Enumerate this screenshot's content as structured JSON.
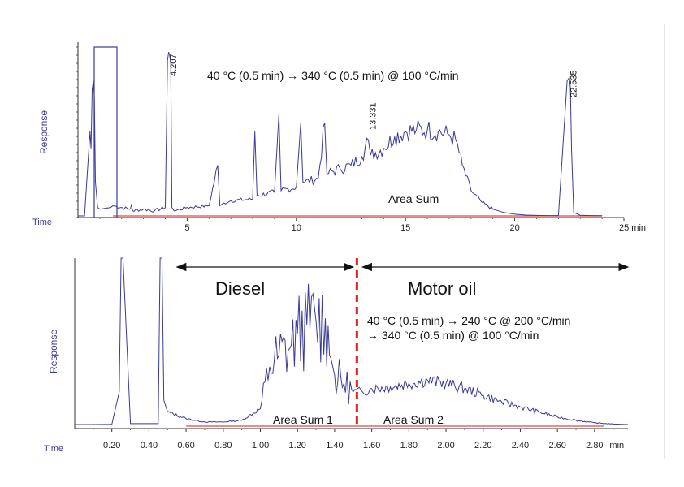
{
  "chart_data": [
    {
      "type": "line",
      "ylabel": "Response",
      "xlabel_time": "Time",
      "xunit": "min",
      "xlim": [
        0,
        25
      ],
      "x_ticks": [
        5,
        10,
        15,
        20,
        25
      ],
      "x_tick_labels": [
        "5",
        "10",
        "15",
        "20",
        "25 min"
      ],
      "condition": "40 °C (0.5 min) → 340 °C (0.5 min) @ 100 °C/min",
      "peak_labels": [
        {
          "x": 4.207,
          "text": "4.207"
        },
        {
          "x": 13.331,
          "text": "13.331"
        },
        {
          "x": 22.535,
          "text": "22.535"
        }
      ],
      "area_sum_label": "Area Sum",
      "series": [
        {
          "name": "chromatogram",
          "color": "#3a3a9a",
          "x": [
            0,
            0.3,
            0.55,
            0.6,
            0.65,
            0.7,
            0.75,
            0.8,
            0.9,
            1.0,
            1.5,
            1.6,
            2.4,
            2.45,
            2.5,
            3,
            3.5,
            4.0,
            4.1,
            4.15,
            4.2,
            4.25,
            4.3,
            4.4,
            5,
            6,
            6.4,
            6.5,
            6.6,
            7,
            8,
            8.1,
            8.2,
            9,
            9.2,
            9.3,
            10,
            10.2,
            10.3,
            11,
            11.3,
            11.4,
            12,
            12.5,
            13,
            13.3,
            13.4,
            14,
            14.5,
            15,
            15.5,
            16,
            16.5,
            17,
            17.3,
            17.6,
            18,
            18.5,
            19,
            19.5,
            20,
            20.5,
            21,
            21.5,
            22,
            22.4,
            22.5,
            22.55,
            22.6,
            22.7,
            23,
            23.5,
            24
          ],
          "y": [
            0,
            0,
            0.5,
            0.4,
            0.75,
            0.8,
            0.7,
            0.2,
            0.05,
            0.04,
            0.05,
            0.06,
            0.04,
            0.07,
            0.03,
            0.04,
            0.03,
            0.05,
            0.92,
            0.97,
            0.95,
            0.9,
            0.05,
            0.03,
            0.05,
            0.06,
            0.3,
            0.06,
            0.07,
            0.09,
            0.1,
            0.5,
            0.12,
            0.14,
            0.6,
            0.15,
            0.17,
            0.55,
            0.2,
            0.22,
            0.55,
            0.25,
            0.28,
            0.3,
            0.35,
            0.45,
            0.36,
            0.4,
            0.47,
            0.5,
            0.51,
            0.51,
            0.5,
            0.48,
            0.45,
            0.3,
            0.15,
            0.08,
            0.04,
            0.02,
            0.01,
            0.005,
            0.003,
            0.002,
            0.002,
            0.8,
            0.82,
            0.76,
            0.4,
            0.02,
            0.004,
            0.002,
            0.001
          ]
        }
      ]
    },
    {
      "type": "line",
      "ylabel": "Response",
      "xlabel_time": "Time",
      "xunit": "min",
      "xlim": [
        0,
        2.98
      ],
      "x_ticks": [
        0.2,
        0.4,
        0.6,
        0.8,
        1.0,
        1.2,
        1.4,
        1.6,
        1.8,
        2.0,
        2.2,
        2.4,
        2.6,
        2.8
      ],
      "x_tick_labels": [
        "0.20",
        "0.40",
        "0.60",
        "0.80",
        "1.00",
        "1.20",
        "1.40",
        "1.60",
        "1.80",
        "2.00",
        "2.20",
        "2.40",
        "2.60",
        "2.80",
        "min"
      ],
      "condition_line1": "40 °C (0.5 min) → 240 °C @ 200 °C/min",
      "condition_line2": "→ 340 °C (0.5 min) @ 100 °C/min",
      "divider_x": 1.52,
      "divider_color": "#dd2222",
      "regions": [
        {
          "label": "Diesel",
          "from": 0.55,
          "to": 1.5
        },
        {
          "label": "Motor oil",
          "from": 1.55,
          "to": 2.98
        }
      ],
      "area_sum_labels": [
        "Area Sum 1",
        "Area Sum 2"
      ],
      "series": [
        {
          "name": "chromatogram",
          "color": "#3a3a9a",
          "x": [
            0,
            0.1,
            0.2,
            0.24,
            0.25,
            0.26,
            0.3,
            0.4,
            0.45,
            0.46,
            0.47,
            0.48,
            0.5,
            0.6,
            0.7,
            0.8,
            0.9,
            1.0,
            1.05,
            1.1,
            1.15,
            1.2,
            1.25,
            1.3,
            1.35,
            1.38,
            1.4,
            1.45,
            1.5,
            1.55,
            1.6,
            1.7,
            1.8,
            1.9,
            2.0,
            2.1,
            2.2,
            2.3,
            2.4,
            2.5,
            2.6,
            2.7,
            2.8,
            2.9,
            2.98
          ],
          "y": [
            0.005,
            0.005,
            0.006,
            0.2,
            1.0,
            1.0,
            0.01,
            0.01,
            0.01,
            1.0,
            1.0,
            0.15,
            0.08,
            0.04,
            0.02,
            0.02,
            0.03,
            0.1,
            0.35,
            0.42,
            0.45,
            0.55,
            0.6,
            0.62,
            0.64,
            0.4,
            0.3,
            0.25,
            0.2,
            0.2,
            0.22,
            0.23,
            0.25,
            0.27,
            0.25,
            0.22,
            0.18,
            0.14,
            0.11,
            0.08,
            0.05,
            0.03,
            0.015,
            0.008,
            0.005
          ]
        }
      ]
    }
  ]
}
